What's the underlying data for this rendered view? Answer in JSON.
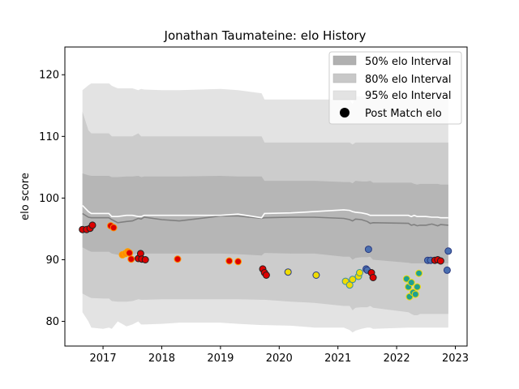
{
  "chart_data": {
    "type": "scatter",
    "title": "Jonathan Taumateine: elo History",
    "xlabel": "",
    "ylabel": "elo score",
    "xlim": [
      2016.35,
      2023.2
    ],
    "ylim": [
      76,
      124.5
    ],
    "xticks": [
      2017,
      2018,
      2019,
      2020,
      2021,
      2022,
      2023
    ],
    "yticks": [
      80,
      90,
      100,
      110,
      120
    ],
    "xtick_labels": [
      "2017",
      "2018",
      "2019",
      "2020",
      "2021",
      "2022",
      "2023"
    ],
    "ytick_labels": [
      "80",
      "90",
      "100",
      "110",
      "120"
    ],
    "grid": false,
    "legend": {
      "placement": "top-right",
      "entries": [
        {
          "label": "50% elo Interval",
          "kind": "band",
          "color": "#b0b0b0"
        },
        {
          "label": "80% elo Interval",
          "kind": "band",
          "color": "#c8c8c8"
        },
        {
          "label": "95% elo Interval",
          "kind": "band",
          "color": "#e3e3e3"
        },
        {
          "label": "Post Match elo",
          "kind": "marker",
          "color": "#000000"
        }
      ]
    },
    "colors": {
      "band95": "#e3e3e3",
      "band80": "#cccccc",
      "band50": "#b6b6b6",
      "median_line": "#808080",
      "mean_line": "#ffffff"
    },
    "bands": {
      "x": [
        2016.65,
        2016.75,
        2016.8,
        2017.0,
        2017.1,
        2017.15,
        2017.25,
        2017.4,
        2017.5,
        2017.6,
        2017.65,
        2017.7,
        2018.0,
        2018.3,
        2019.0,
        2019.3,
        2019.7,
        2019.75,
        2020.2,
        2020.6,
        2021.1,
        2021.2,
        2021.25,
        2021.3,
        2021.4,
        2021.5,
        2021.55,
        2021.6,
        2022.2,
        2022.25,
        2022.3,
        2022.35,
        2022.4,
        2022.5,
        2022.6,
        2022.7,
        2022.75,
        2022.88
      ],
      "upper95": [
        117.5,
        118.3,
        118.6,
        118.6,
        118.6,
        118.2,
        117.8,
        117.8,
        117.8,
        117.5,
        117.7,
        117.6,
        117.5,
        117.5,
        117.7,
        117.5,
        117.0,
        116.0,
        116.0,
        116.0,
        116.0,
        116.0,
        115.2,
        116.5,
        116.5,
        116.5,
        116.7,
        116.5,
        116.0,
        117.2,
        117.5,
        116.0,
        117.5,
        116.5,
        116.0,
        117.0,
        116.0,
        116.0
      ],
      "upper80": [
        114.0,
        111.0,
        110.5,
        110.5,
        110.5,
        110.0,
        110.0,
        110.0,
        110.0,
        110.5,
        110.0,
        110.0,
        110.0,
        110.0,
        110.0,
        110.0,
        110.0,
        109.0,
        109.0,
        109.0,
        109.0,
        109.0,
        108.7,
        109.0,
        109.0,
        109.0,
        109.0,
        109.0,
        109.0,
        109.0,
        109.0,
        109.0,
        109.0,
        109.0,
        109.0,
        109.0,
        109.0,
        109.0
      ],
      "upper50": [
        104.0,
        103.7,
        103.6,
        103.6,
        103.6,
        103.4,
        103.4,
        103.5,
        103.5,
        103.6,
        103.4,
        103.5,
        103.5,
        103.5,
        103.6,
        103.5,
        103.5,
        102.8,
        102.8,
        102.8,
        102.6,
        102.6,
        102.4,
        102.8,
        102.7,
        102.7,
        102.8,
        102.5,
        102.5,
        102.5,
        102.3,
        102.2,
        102.3,
        102.3,
        102.3,
        102.3,
        102.2,
        102.2
      ],
      "median": [
        97.5,
        96.9,
        96.8,
        96.8,
        96.8,
        96.5,
        96.0,
        96.2,
        96.3,
        96.7,
        96.6,
        96.9,
        96.5,
        96.3,
        97.1,
        97.1,
        96.7,
        96.8,
        96.9,
        96.9,
        96.7,
        96.5,
        96.3,
        96.6,
        96.5,
        96.2,
        95.9,
        96.0,
        95.9,
        95.6,
        95.7,
        95.5,
        95.6,
        95.6,
        95.8,
        95.5,
        95.7,
        95.6
      ],
      "mean": [
        98.8,
        97.8,
        97.5,
        97.5,
        97.5,
        97.0,
        97.0,
        97.2,
        97.2,
        97.0,
        97.0,
        97.2,
        97.2,
        97.2,
        97.2,
        97.4,
        96.8,
        97.5,
        97.6,
        97.8,
        98.1,
        98.0,
        97.8,
        97.7,
        97.6,
        97.4,
        97.2,
        97.2,
        97.2,
        97.0,
        97.2,
        97.0,
        97.0,
        97.0,
        96.9,
        96.9,
        96.8,
        96.8
      ],
      "lower50": [
        92.0,
        91.5,
        91.3,
        91.3,
        91.3,
        91.0,
        90.8,
        90.9,
        90.9,
        91.0,
        90.8,
        91.0,
        91.0,
        91.0,
        91.0,
        90.9,
        90.7,
        91.1,
        91.0,
        91.0,
        90.5,
        90.5,
        90.0,
        90.3,
        90.4,
        90.4,
        90.5,
        90.0,
        89.5,
        89.4,
        89.4,
        89.4,
        89.4,
        89.4,
        89.4,
        89.4,
        89.4,
        89.4
      ],
      "lower80": [
        84.5,
        84.0,
        83.8,
        83.7,
        83.7,
        83.3,
        83.2,
        83.2,
        83.3,
        83.6,
        83.5,
        83.5,
        83.6,
        83.6,
        83.6,
        83.6,
        83.5,
        83.5,
        83.2,
        83.0,
        82.5,
        82.5,
        81.8,
        82.2,
        82.3,
        82.3,
        82.5,
        82.2,
        81.5,
        81.2,
        81.0,
        81.0,
        81.2,
        81.2,
        81.2,
        81.2,
        81.2,
        81.2
      ],
      "lower95": [
        81.5,
        80.0,
        79.0,
        78.8,
        79.0,
        78.8,
        80.0,
        79.2,
        79.5,
        80.0,
        79.5,
        79.5,
        79.6,
        79.8,
        79.8,
        79.6,
        79.4,
        79.4,
        79.3,
        79.0,
        79.0,
        78.6,
        78.2,
        78.5,
        78.8,
        79.0,
        79.0,
        78.8,
        79.0,
        79.0,
        79.0,
        79.0,
        79.0,
        79.0,
        79.0,
        79.0,
        79.0,
        79.0
      ]
    },
    "series": [
      {
        "fill": "#dd0000",
        "edge": "#222222",
        "points": [
          [
            2016.65,
            94.9
          ],
          [
            2016.72,
            94.9
          ],
          [
            2016.78,
            95.1
          ],
          [
            2016.82,
            95.6
          ]
        ]
      },
      {
        "fill": "#dd0000",
        "edge": "#ff8c00",
        "points": [
          [
            2017.13,
            95.5
          ],
          [
            2017.18,
            95.2
          ]
        ]
      },
      {
        "fill": "#ff8c00",
        "edge": "#ffa000",
        "points": [
          [
            2017.33,
            90.8
          ],
          [
            2017.38,
            91.0
          ],
          [
            2017.42,
            91.3
          ]
        ]
      },
      {
        "fill": "#dd0000",
        "edge": "#ff8c00",
        "points": [
          [
            2017.45,
            91.1
          ],
          [
            2017.48,
            90.1
          ]
        ]
      },
      {
        "fill": "#dd0000",
        "edge": "#222222",
        "points": [
          [
            2017.6,
            90.2
          ],
          [
            2017.64,
            91.0
          ],
          [
            2017.66,
            90.1
          ],
          [
            2017.72,
            90.0
          ]
        ]
      },
      {
        "fill": "#dd0000",
        "edge": "#ff8c00",
        "points": [
          [
            2018.27,
            90.1
          ]
        ]
      },
      {
        "fill": "#dd0000",
        "edge": "#ffa000",
        "points": [
          [
            2019.15,
            89.8
          ],
          [
            2019.3,
            89.7
          ]
        ]
      },
      {
        "fill": "#dd0000",
        "edge": "#222222",
        "points": [
          [
            2019.72,
            88.5
          ],
          [
            2019.75,
            87.9
          ],
          [
            2019.78,
            87.5
          ]
        ]
      },
      {
        "fill": "#f0dc00",
        "edge": "#2a3a80",
        "points": [
          [
            2020.15,
            88.0
          ],
          [
            2020.63,
            87.5
          ]
        ]
      },
      {
        "fill": "#f0dc00",
        "edge": "#3a8ea0",
        "points": [
          [
            2021.13,
            86.5
          ],
          [
            2021.2,
            85.9
          ],
          [
            2021.25,
            86.8
          ],
          [
            2021.35,
            87.3
          ],
          [
            2021.37,
            87.9
          ]
        ]
      },
      {
        "fill": "#4a6fb0",
        "edge": "#2a3a80",
        "points": [
          [
            2021.48,
            88.5
          ],
          [
            2021.5,
            88.3
          ],
          [
            2021.52,
            91.7
          ]
        ]
      },
      {
        "fill": "#dd0000",
        "edge": "#222222",
        "points": [
          [
            2021.57,
            87.9
          ],
          [
            2021.6,
            87.1
          ]
        ]
      },
      {
        "fill": "#20a090",
        "edge": "#f0dc00",
        "points": [
          [
            2022.17,
            86.9
          ],
          [
            2022.2,
            85.6
          ],
          [
            2022.22,
            84.0
          ],
          [
            2022.25,
            86.3
          ],
          [
            2022.28,
            84.7
          ],
          [
            2022.32,
            84.4
          ],
          [
            2022.35,
            85.6
          ],
          [
            2022.38,
            87.8
          ]
        ]
      },
      {
        "fill": "#4a6fb0",
        "edge": "#2a3a80",
        "points": [
          [
            2022.53,
            89.9
          ],
          [
            2022.58,
            89.9
          ]
        ]
      },
      {
        "fill": "#dd0000",
        "edge": "#222222",
        "points": [
          [
            2022.65,
            89.9
          ],
          [
            2022.7,
            90.0
          ],
          [
            2022.75,
            89.8
          ]
        ]
      },
      {
        "fill": "#4a6fb0",
        "edge": "#2a3a80",
        "points": [
          [
            2022.86,
            88.3
          ],
          [
            2022.88,
            91.4
          ]
        ]
      }
    ]
  }
}
